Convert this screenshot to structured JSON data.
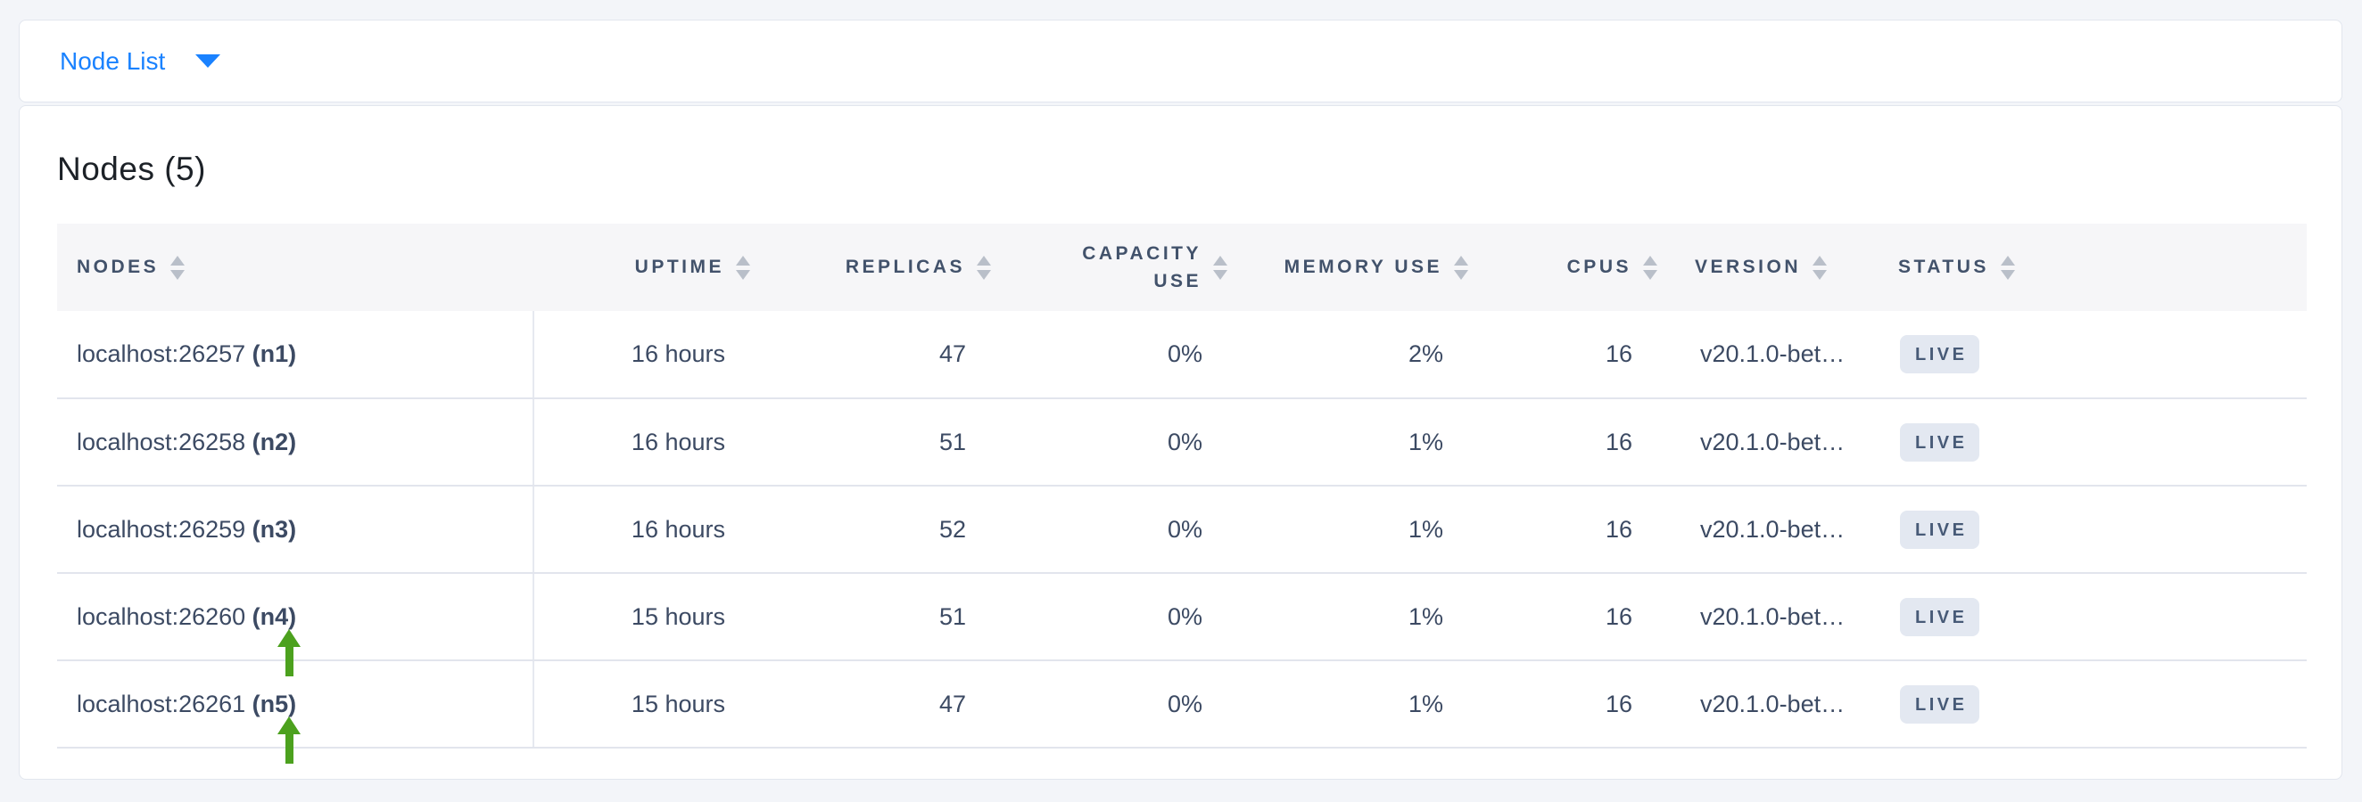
{
  "topbar": {
    "dropdown_label": "Node List"
  },
  "main": {
    "title": "Nodes (5)",
    "table": {
      "columns": [
        {
          "key": "nodes",
          "label": "NODES",
          "align": "left"
        },
        {
          "key": "uptime",
          "label": "UPTIME",
          "align": "right"
        },
        {
          "key": "replicas",
          "label": "REPLICAS",
          "align": "right"
        },
        {
          "key": "capacity-use",
          "label": "CAPACITY USE",
          "lines": [
            "CAPACITY",
            "USE"
          ],
          "align": "right"
        },
        {
          "key": "memory-use",
          "label": "MEMORY USE",
          "align": "right"
        },
        {
          "key": "cpus",
          "label": "CPUS",
          "align": "right"
        },
        {
          "key": "version",
          "label": "VERSION",
          "align": "left"
        },
        {
          "key": "status",
          "label": "STATUS",
          "align": "left"
        }
      ],
      "rows": [
        {
          "address": "localhost:26257",
          "node_id": "(n1)",
          "uptime": "16 hours",
          "replicas": "47",
          "capacity_use": "0%",
          "memory_use": "2%",
          "cpus": "16",
          "version": "v20.1.0-bet…",
          "status": "LIVE",
          "arrow": false
        },
        {
          "address": "localhost:26258",
          "node_id": "(n2)",
          "uptime": "16 hours",
          "replicas": "51",
          "capacity_use": "0%",
          "memory_use": "1%",
          "cpus": "16",
          "version": "v20.1.0-bet…",
          "status": "LIVE",
          "arrow": false
        },
        {
          "address": "localhost:26259",
          "node_id": "(n3)",
          "uptime": "16 hours",
          "replicas": "52",
          "capacity_use": "0%",
          "memory_use": "1%",
          "cpus": "16",
          "version": "v20.1.0-bet…",
          "status": "LIVE",
          "arrow": false
        },
        {
          "address": "localhost:26260",
          "node_id": "(n4)",
          "uptime": "15 hours",
          "replicas": "51",
          "capacity_use": "0%",
          "memory_use": "1%",
          "cpus": "16",
          "version": "v20.1.0-bet…",
          "status": "LIVE",
          "arrow": true
        },
        {
          "address": "localhost:26261",
          "node_id": "(n5)",
          "uptime": "15 hours",
          "replicas": "47",
          "capacity_use": "0%",
          "memory_use": "1%",
          "cpus": "16",
          "version": "v20.1.0-bet…",
          "status": "LIVE",
          "arrow": true
        }
      ]
    }
  },
  "colors": {
    "accent_blue": "#1a82ff",
    "arrow_green": "#4ca11e",
    "badge_bg": "#e3e8f1",
    "badge_text": "#475a77",
    "header_text": "#42526b",
    "page_bg": "#f3f5f9"
  }
}
